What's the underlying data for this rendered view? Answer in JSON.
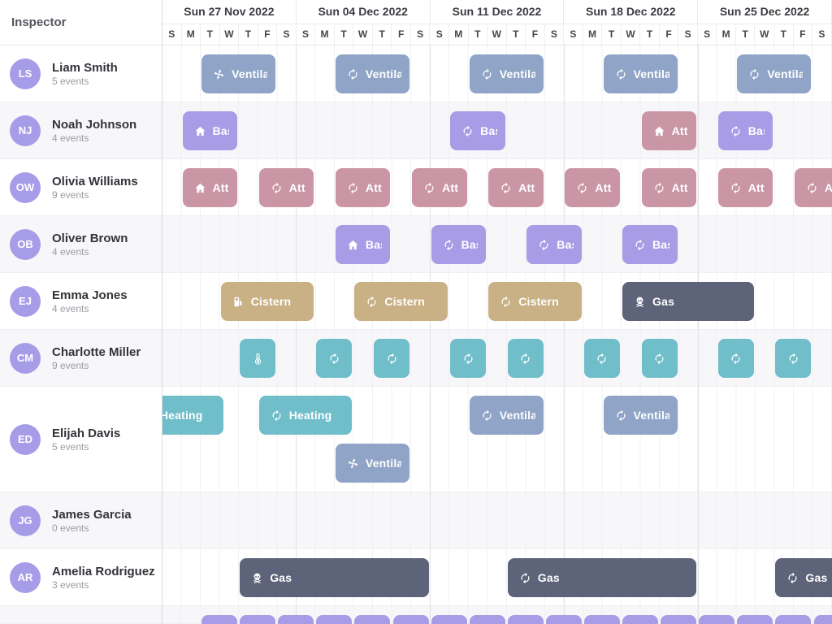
{
  "sidebar": {
    "title": "Inspector",
    "resources": [
      {
        "initials": "LS",
        "name": "Liam Smith",
        "events": "5 events"
      },
      {
        "initials": "NJ",
        "name": "Noah Johnson",
        "events": "4 events"
      },
      {
        "initials": "OW",
        "name": "Olivia Williams",
        "events": "9 events"
      },
      {
        "initials": "OB",
        "name": "Oliver Brown",
        "events": "4 events"
      },
      {
        "initials": "EJ",
        "name": "Emma Jones",
        "events": "4 events"
      },
      {
        "initials": "CM",
        "name": "Charlotte Miller",
        "events": "9 events"
      },
      {
        "initials": "ED",
        "name": "Elijah Davis",
        "events": "5 events"
      },
      {
        "initials": "JG",
        "name": "James Garcia",
        "events": "0 events"
      },
      {
        "initials": "AR",
        "name": "Amelia Rodriguez",
        "events": "3 events"
      }
    ]
  },
  "header": {
    "weeks": [
      "Sun 27 Nov 2022",
      "Sun 04 Dec 2022",
      "Sun 11 Dec 2022",
      "Sun 18 Dec 2022",
      "Sun 25 Dec 2022"
    ],
    "day_letters": [
      "S",
      "M",
      "T",
      "W",
      "T",
      "F",
      "S"
    ]
  },
  "colors": {
    "kinds": {
      "ventilation": "#8fa4c6",
      "basement": "#a79ce5",
      "attic": "#ca96a6",
      "cistern": "#c9b185",
      "heating": "#6fbeca",
      "gas": "#5d6378"
    },
    "avatar_bg": "#a79ce8",
    "stripe": "#f7f7f9"
  },
  "schedule": {
    "rows": [
      {
        "h": 70,
        "events": [
          {
            "s": 2,
            "d": 4,
            "k": "ventilation",
            "i": "fan",
            "t": "Ventilation"
          },
          {
            "s": 9,
            "d": 4,
            "k": "ventilation",
            "i": "sync",
            "t": "Ventilation"
          },
          {
            "s": 16,
            "d": 4,
            "k": "ventilation",
            "i": "sync",
            "t": "Ventilation"
          },
          {
            "s": 23,
            "d": 4,
            "k": "ventilation",
            "i": "sync",
            "t": "Ventilation"
          },
          {
            "s": 30,
            "d": 4,
            "k": "ventilation",
            "i": "sync",
            "t": "Ventilation"
          }
        ]
      },
      {
        "h": 70,
        "events": [
          {
            "s": 1,
            "d": 3,
            "k": "basement",
            "i": "home",
            "t": "Basement"
          },
          {
            "s": 15,
            "d": 3,
            "k": "basement",
            "i": "sync",
            "t": "Basement"
          },
          {
            "s": 25,
            "d": 3,
            "k": "attic",
            "i": "home",
            "t": "Attic"
          },
          {
            "s": 29,
            "d": 3,
            "k": "basement",
            "i": "sync",
            "t": "Basement"
          }
        ]
      },
      {
        "h": 70,
        "events": [
          {
            "s": 1,
            "d": 3,
            "k": "attic",
            "i": "home",
            "t": "Attic"
          },
          {
            "s": 5,
            "d": 3,
            "k": "attic",
            "i": "sync",
            "t": "Attic"
          },
          {
            "s": 9,
            "d": 3,
            "k": "attic",
            "i": "sync",
            "t": "Attic"
          },
          {
            "s": 13,
            "d": 3,
            "k": "attic",
            "i": "sync",
            "t": "Attic"
          },
          {
            "s": 17,
            "d": 3,
            "k": "attic",
            "i": "sync",
            "t": "Attic"
          },
          {
            "s": 21,
            "d": 3,
            "k": "attic",
            "i": "sync",
            "t": "Attic"
          },
          {
            "s": 25,
            "d": 3,
            "k": "attic",
            "i": "sync",
            "t": "Attic"
          },
          {
            "s": 29,
            "d": 3,
            "k": "attic",
            "i": "sync",
            "t": "Attic"
          },
          {
            "s": 33,
            "d": 3,
            "k": "attic",
            "i": "sync",
            "t": "Attic"
          }
        ]
      },
      {
        "h": 70,
        "events": [
          {
            "s": 9,
            "d": 3,
            "k": "basement",
            "i": "home",
            "t": "Basement"
          },
          {
            "s": 14,
            "d": 3,
            "k": "basement",
            "i": "sync",
            "t": "Basement"
          },
          {
            "s": 19,
            "d": 3,
            "k": "basement",
            "i": "sync",
            "t": "Basement"
          },
          {
            "s": 24,
            "d": 3,
            "k": "basement",
            "i": "sync",
            "t": "Basement"
          }
        ]
      },
      {
        "h": 70,
        "events": [
          {
            "s": 3,
            "d": 5,
            "k": "cistern",
            "i": "fuel",
            "t": "Cistern"
          },
          {
            "s": 10,
            "d": 5,
            "k": "cistern",
            "i": "sync",
            "t": "Cistern"
          },
          {
            "s": 17,
            "d": 5,
            "k": "cistern",
            "i": "sync",
            "t": "Cistern"
          },
          {
            "s": 24,
            "d": 7,
            "k": "gas",
            "i": "skull",
            "t": "Gas"
          }
        ]
      },
      {
        "h": 70,
        "events": [
          {
            "s": 4,
            "d": 2,
            "k": "heating",
            "i": "thermometer",
            "t": ""
          },
          {
            "s": 8,
            "d": 2,
            "k": "heating",
            "i": "sync",
            "t": ""
          },
          {
            "s": 11,
            "d": 2,
            "k": "heating",
            "i": "sync",
            "t": ""
          },
          {
            "s": 15,
            "d": 2,
            "k": "heating",
            "i": "sync",
            "t": ""
          },
          {
            "s": 18,
            "d": 2,
            "k": "heating",
            "i": "sync",
            "t": ""
          },
          {
            "s": 22,
            "d": 2,
            "k": "heating",
            "i": "sync",
            "t": ""
          },
          {
            "s": 25,
            "d": 2,
            "k": "heating",
            "i": "sync",
            "t": ""
          },
          {
            "s": 29,
            "d": 2,
            "k": "heating",
            "i": "sync",
            "t": ""
          },
          {
            "s": 32,
            "d": 2,
            "k": "heating",
            "i": "sync",
            "t": ""
          }
        ]
      },
      {
        "h": 130,
        "events": [
          {
            "s": -1.75,
            "d": 5,
            "k": "heating",
            "i": "thermometer",
            "t": "Heating"
          },
          {
            "s": 5,
            "d": 5,
            "k": "heating",
            "i": "sync",
            "t": "Heating"
          },
          {
            "s": 16,
            "d": 4,
            "k": "ventilation",
            "i": "sync",
            "t": "Ventilation"
          },
          {
            "s": 23,
            "d": 4,
            "k": "ventilation",
            "i": "sync",
            "t": "Ventilation"
          },
          {
            "s": 9,
            "d": 4,
            "k": "ventilation",
            "i": "fan",
            "t": "Ventilation",
            "l": 1
          }
        ]
      },
      {
        "h": 70,
        "events": []
      },
      {
        "h": 70,
        "events": [
          {
            "s": 4,
            "d": 10,
            "k": "gas",
            "i": "skull",
            "t": "Gas"
          },
          {
            "s": 18,
            "d": 10,
            "k": "gas",
            "i": "sync",
            "t": "Gas"
          },
          {
            "s": 32,
            "d": 10,
            "k": "gas",
            "i": "sync",
            "t": "Gas"
          }
        ]
      },
      {
        "h": 22,
        "events": [],
        "repeat": {
          "s": 2,
          "step": 2,
          "d": 2,
          "count": 17,
          "k": "basement"
        }
      }
    ]
  }
}
